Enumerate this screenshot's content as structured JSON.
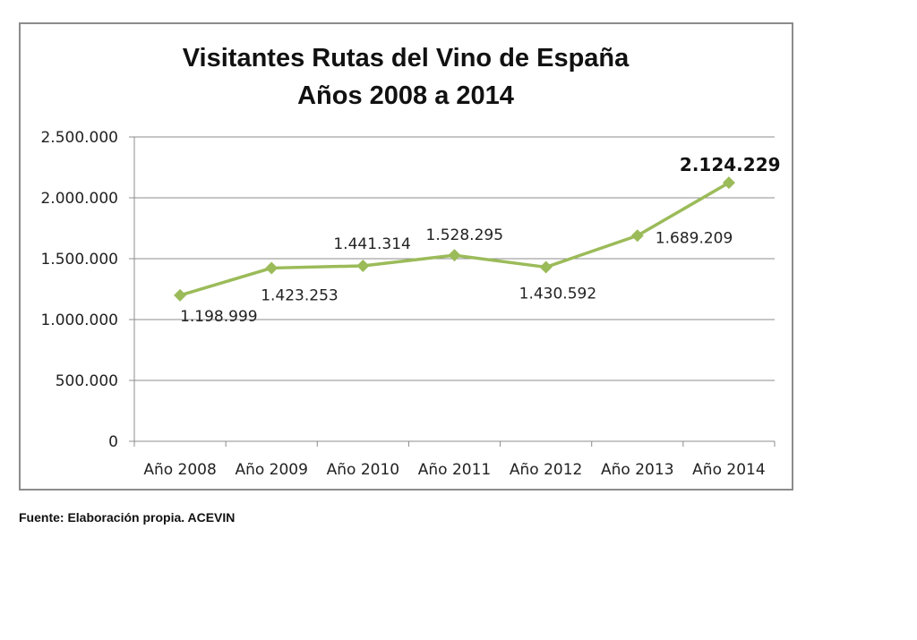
{
  "chart_data": {
    "type": "line",
    "title": [
      "Visitantes Rutas del Vino de España",
      "Años 2008 a 2014"
    ],
    "categories": [
      "Año 2008",
      "Año 2009",
      "Año 2010",
      "Año 2011",
      "Año 2012",
      "Año 2013",
      "Año 2014"
    ],
    "values": [
      1198999,
      1423253,
      1441314,
      1528295,
      1430592,
      1689209,
      2124229
    ],
    "data_labels": [
      "1.198.999",
      "1.423.253",
      "1.441.314",
      "1.528.295",
      "1.430.592",
      "1.689.209",
      "2.124.229"
    ],
    "ylim": [
      0,
      2500000
    ],
    "yticks": [
      0,
      500000,
      1000000,
      1500000,
      2000000,
      2500000
    ],
    "ytick_labels": [
      "0",
      "500.000",
      "1.000.000",
      "1.500.000",
      "2.000.000",
      "2.500.000"
    ],
    "xlabel": "",
    "ylabel": "",
    "grid": true,
    "legend": "none",
    "series_color": "#9bbb59",
    "marker": "diamond"
  },
  "source": "Fuente: Elaboración propia. ACEVIN"
}
